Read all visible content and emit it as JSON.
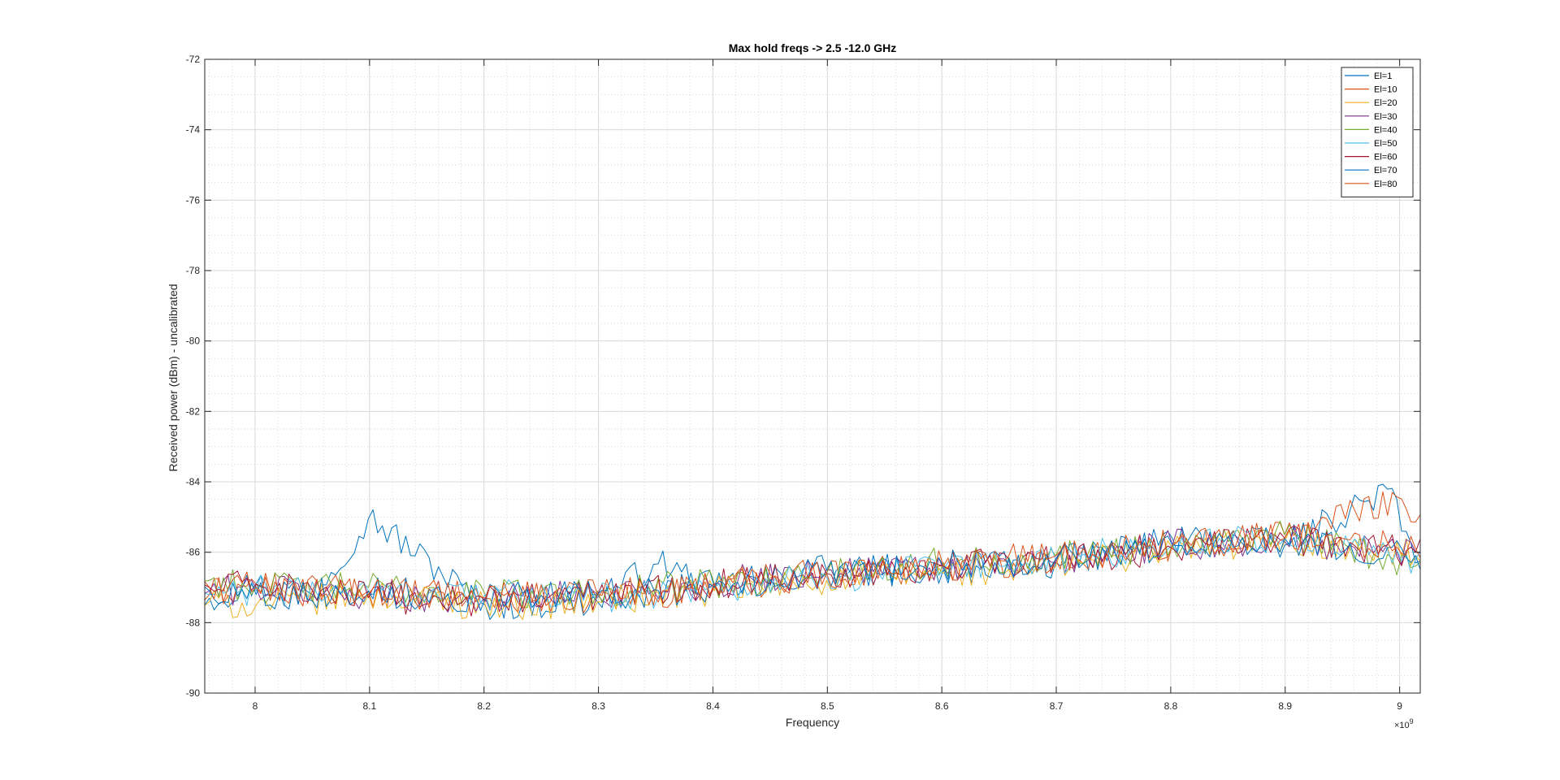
{
  "chart_data": {
    "type": "line",
    "title": "Max hold freqs -> 2.5 -12.0 GHz",
    "xlabel": "Frequency",
    "ylabel": "Received power (dBm) - uncalibrated",
    "x_exponent_label": "×10",
    "x_exponent_power": "9",
    "xlim": [
      7956000000.0,
      9018000000.0
    ],
    "ylim": [
      -90,
      -72
    ],
    "x_tick_values": [
      8.0,
      8.1,
      8.2,
      8.3,
      8.4,
      8.5,
      8.6,
      8.7,
      8.8,
      8.9,
      9.0
    ],
    "x_tick_labels": [
      "8",
      "8.1",
      "8.2",
      "8.3",
      "8.4",
      "8.5",
      "8.6",
      "8.7",
      "8.8",
      "8.9",
      "9"
    ],
    "y_tick_values": [
      -90,
      -88,
      -86,
      -84,
      -82,
      -80,
      -78,
      -76,
      -74,
      -72
    ],
    "y_tick_labels": [
      "-90",
      "-88",
      "-86",
      "-84",
      "-82",
      "-80",
      "-78",
      "-76",
      "-74",
      "-72"
    ],
    "grid": true,
    "minor_grid": true,
    "legend_position": "top-right",
    "series": [
      {
        "name": "El=1",
        "color": "#0072BD",
        "x": [
          7960000000.0,
          8000000000.0,
          8050000000.0,
          8100000000.0,
          8200000000.0,
          8300000000.0,
          8350000000.0,
          8400000000.0,
          8500000000.0,
          8600000000.0,
          8700000000.0,
          8800000000.0,
          8900000000.0,
          8990000000.0,
          9015000000.0
        ],
        "values": [
          -87.3,
          -86.9,
          -87.2,
          -85.0,
          -87.5,
          -87.4,
          -86.3,
          -87.0,
          -86.6,
          -86.5,
          -86.3,
          -85.6,
          -85.8,
          -84.2,
          -86.4
        ]
      },
      {
        "name": "El=10",
        "color": "#D95319",
        "x": [
          7960000000.0,
          8000000000.0,
          8050000000.0,
          8100000000.0,
          8200000000.0,
          8300000000.0,
          8400000000.0,
          8500000000.0,
          8600000000.0,
          8700000000.0,
          8800000000.0,
          8900000000.0,
          9000000000.0,
          9015000000.0
        ],
        "values": [
          -87.2,
          -86.9,
          -87.1,
          -87.1,
          -87.3,
          -87.3,
          -87.0,
          -86.6,
          -86.4,
          -86.2,
          -85.8,
          -85.5,
          -84.4,
          -85.2
        ]
      },
      {
        "name": "El=20",
        "color": "#EDB120",
        "x": [
          7960000000.0,
          8000000000.0,
          8100000000.0,
          8200000000.0,
          8300000000.0,
          8400000000.0,
          8500000000.0,
          8600000000.0,
          8700000000.0,
          8800000000.0,
          8900000000.0,
          9015000000.0
        ],
        "values": [
          -87.4,
          -87.5,
          -87.2,
          -87.5,
          -87.4,
          -87.1,
          -86.8,
          -86.6,
          -86.4,
          -85.9,
          -85.7,
          -86.1
        ]
      },
      {
        "name": "El=30",
        "color": "#7E2F8E",
        "x": [
          7960000000.0,
          8000000000.0,
          8100000000.0,
          8200000000.0,
          8300000000.0,
          8400000000.0,
          8500000000.0,
          8600000000.0,
          8700000000.0,
          8800000000.0,
          8900000000.0,
          9015000000.0
        ],
        "values": [
          -87.1,
          -87.0,
          -87.2,
          -87.3,
          -87.2,
          -86.9,
          -86.5,
          -86.5,
          -86.3,
          -85.8,
          -85.7,
          -86.0
        ]
      },
      {
        "name": "El=40",
        "color": "#77AC30",
        "x": [
          7960000000.0,
          8000000000.0,
          8100000000.0,
          8200000000.0,
          8300000000.0,
          8400000000.0,
          8500000000.0,
          8600000000.0,
          8700000000.0,
          8800000000.0,
          8900000000.0,
          9015000000.0
        ],
        "values": [
          -86.8,
          -87.0,
          -87.0,
          -87.2,
          -87.1,
          -86.9,
          -86.6,
          -86.3,
          -86.1,
          -85.8,
          -85.5,
          -86.4
        ]
      },
      {
        "name": "El=50",
        "color": "#4DBEEE",
        "x": [
          7960000000.0,
          8000000000.0,
          8100000000.0,
          8200000000.0,
          8300000000.0,
          8400000000.0,
          8500000000.0,
          8600000000.0,
          8700000000.0,
          8800000000.0,
          8900000000.0,
          9015000000.0
        ],
        "values": [
          -87.2,
          -87.1,
          -87.1,
          -87.2,
          -87.3,
          -87.0,
          -86.7,
          -86.5,
          -86.2,
          -85.8,
          -85.6,
          -86.2
        ]
      },
      {
        "name": "El=60",
        "color": "#A2142F",
        "x": [
          7960000000.0,
          8000000000.0,
          8100000000.0,
          8200000000.0,
          8300000000.0,
          8400000000.0,
          8500000000.0,
          8600000000.0,
          8700000000.0,
          8800000000.0,
          8900000000.0,
          9015000000.0
        ],
        "values": [
          -87.0,
          -86.9,
          -87.3,
          -87.4,
          -87.2,
          -86.9,
          -86.6,
          -86.4,
          -86.2,
          -85.9,
          -85.6,
          -86.0
        ]
      },
      {
        "name": "El=70",
        "color": "#0072BD",
        "x": [
          7960000000.0,
          8000000000.0,
          8100000000.0,
          8200000000.0,
          8300000000.0,
          8400000000.0,
          8500000000.0,
          8600000000.0,
          8700000000.0,
          8800000000.0,
          8900000000.0,
          9015000000.0
        ],
        "values": [
          -87.1,
          -87.2,
          -87.1,
          -87.3,
          -87.2,
          -87.0,
          -86.5,
          -86.4,
          -86.2,
          -85.8,
          -85.6,
          -86.1
        ]
      },
      {
        "name": "El=80",
        "color": "#D95319",
        "x": [
          7960000000.0,
          8000000000.0,
          8100000000.0,
          8200000000.0,
          8300000000.0,
          8400000000.0,
          8500000000.0,
          8600000000.0,
          8700000000.0,
          8800000000.0,
          8900000000.0,
          9015000000.0
        ],
        "values": [
          -87.0,
          -87.0,
          -87.2,
          -87.3,
          -87.2,
          -86.9,
          -86.6,
          -86.4,
          -86.1,
          -85.8,
          -85.6,
          -85.9
        ]
      }
    ]
  }
}
